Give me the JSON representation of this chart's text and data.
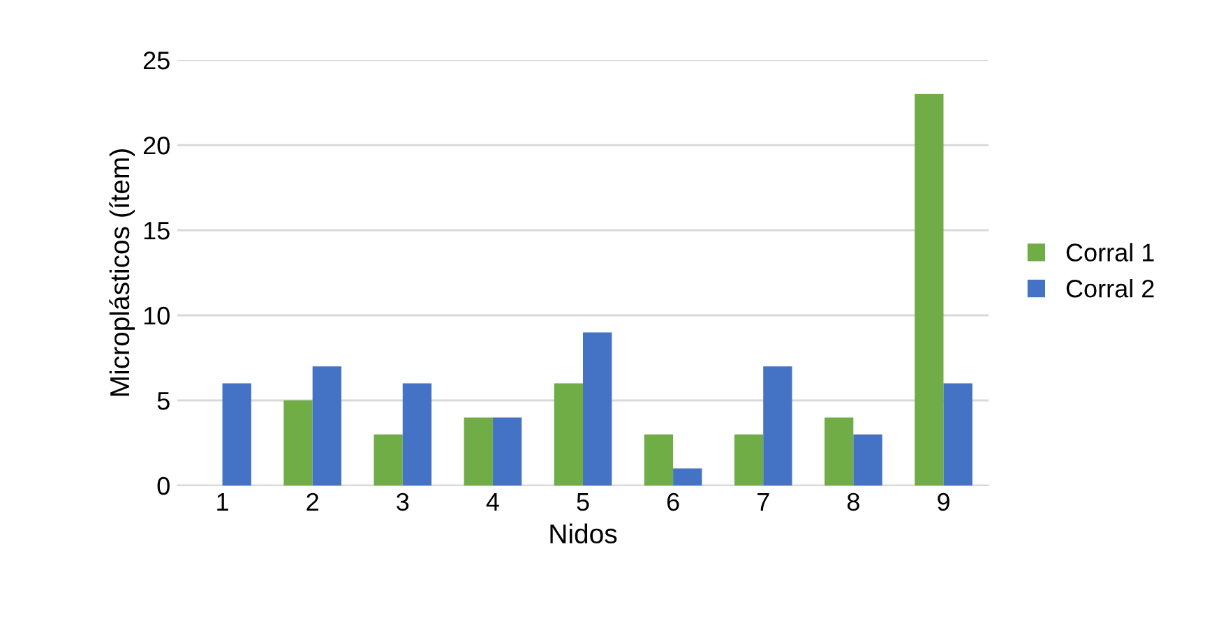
{
  "chart_data": {
    "type": "bar",
    "xlabel": "Nidos",
    "ylabel": "Microplásticos (ítem)",
    "categories": [
      "1",
      "2",
      "3",
      "4",
      "5",
      "6",
      "7",
      "8",
      "9"
    ],
    "series": [
      {
        "name": "Corral 1",
        "color": "#70ad47",
        "values": [
          0,
          5,
          3,
          4,
          6,
          3,
          3,
          4,
          23
        ]
      },
      {
        "name": "Corral 2",
        "color": "#4472c4",
        "values": [
          6,
          7,
          6,
          4,
          9,
          1,
          7,
          3,
          6
        ]
      }
    ],
    "ylim": [
      0,
      25
    ],
    "yticks": [
      0,
      5,
      10,
      15,
      20,
      25
    ],
    "grid": "y",
    "legend": "right"
  }
}
